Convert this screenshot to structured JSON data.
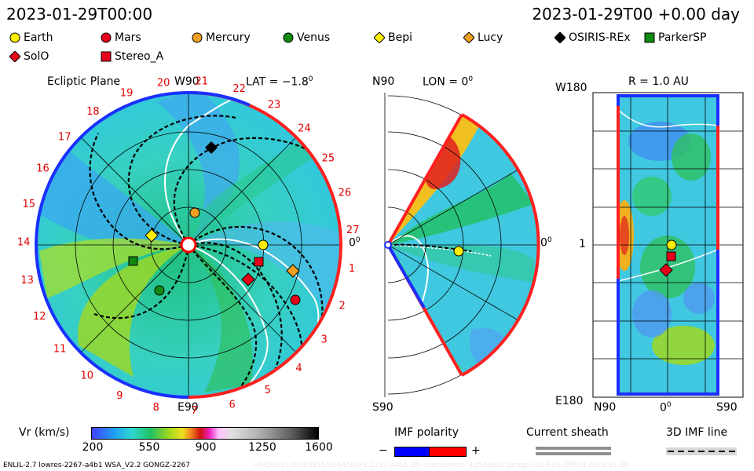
{
  "header": {
    "left_time": "2023-01-29T00:00",
    "right_time": "2023-01-29T00 +0.00 day"
  },
  "legend": [
    {
      "name": "Earth",
      "marker": "circle",
      "color": "#ffee00"
    },
    {
      "name": "Mars",
      "marker": "circle",
      "color": "#e8001a"
    },
    {
      "name": "Mercury",
      "marker": "circle",
      "color": "#f0a020"
    },
    {
      "name": "Venus",
      "marker": "circle",
      "color": "#108a10"
    },
    {
      "name": "Bepi",
      "marker": "diamond",
      "color": "#ffee00"
    },
    {
      "name": "Lucy",
      "marker": "diamond",
      "color": "#f0a020"
    },
    {
      "name": "OSIRIS-REx",
      "marker": "diamond",
      "color": "#000000"
    },
    {
      "name": "ParkerSP",
      "marker": "square",
      "color": "#108a10"
    },
    {
      "name": "SolO",
      "marker": "diamond",
      "color": "#e8001a"
    },
    {
      "name": "Stereo_A",
      "marker": "square",
      "color": "#e8001a"
    }
  ],
  "panel1": {
    "title": "Ecliptic Plane",
    "top_label": "W90",
    "lat_label": "LAT = −1.8",
    "lat_sup": "0",
    "right_label": "0",
    "right_sup": "0",
    "bottom_label": "E90",
    "carrington": [
      "1",
      "2",
      "3",
      "4",
      "5",
      "6",
      "7",
      "8",
      "9",
      "10",
      "11",
      "12",
      "13",
      "14",
      "15",
      "16",
      "17",
      "18",
      "19",
      "20",
      "21",
      "22",
      "23",
      "24",
      "25",
      "26",
      "27"
    ]
  },
  "panel2": {
    "top_label": "N90",
    "lon_label": "LON = 0",
    "lon_sup": "0",
    "right_label": "0",
    "right_sup": "0",
    "bottom_label": "S90"
  },
  "panel3": {
    "r_label": "R = 1.0 AU",
    "left_top": "W180",
    "left_mid": "1",
    "left_bottom": "E180",
    "bottom_left": "N90",
    "bottom_mid": "0",
    "bottom_mid_sup": "0",
    "bottom_right": "S90"
  },
  "colorbar": {
    "label": "Vr (km/s)",
    "ticks": [
      "200",
      "550",
      "900",
      "1250",
      "1600"
    ]
  },
  "imf": {
    "title": "IMF polarity",
    "minus": "−",
    "plus": "+",
    "neg_color": "#0000ff",
    "pos_color": "#ff0000"
  },
  "sheath": {
    "title": "Current sheath"
  },
  "imfline": {
    "title": "3D IMF line"
  },
  "footer": {
    "left": "ENLIL-2.7 lowres-2267-a4b1 WSA_V2.2 GONGZ-2267",
    "right": "UNIQUE0130093815/2664504*1.2257-a4b1.35--nostunmcd--1g53q5d2.gongz-2023-01-29T00   2023-01-30"
  }
}
